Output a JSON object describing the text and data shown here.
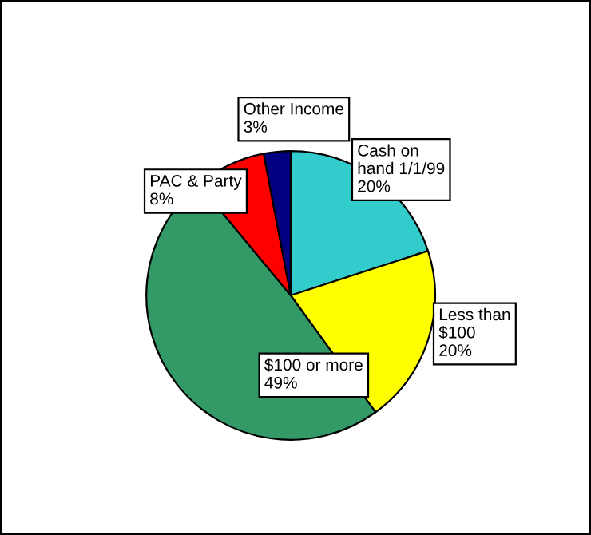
{
  "chart_data": {
    "type": "pie",
    "categories": [
      "Cash on\nhand 1/1/99",
      "Less than\n$100",
      "$100 or more",
      "PAC & Party",
      "Other Income"
    ],
    "values": [
      20,
      20,
      49,
      8,
      3
    ],
    "value_labels": [
      "20%",
      "20%",
      "49%",
      "8%",
      "3%"
    ],
    "colors": [
      "#33cccc",
      "#ffff00",
      "#339966",
      "#ff0000",
      "#000080"
    ],
    "legend": false
  }
}
